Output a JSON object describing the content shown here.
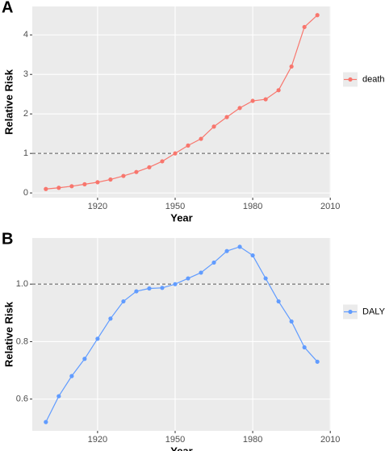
{
  "chart_data": [
    {
      "type": "line",
      "label": "A",
      "xlabel": "Year",
      "ylabel": "Relative Risk",
      "x": [
        1900,
        1905,
        1910,
        1915,
        1920,
        1925,
        1930,
        1935,
        1940,
        1945,
        1950,
        1955,
        1960,
        1965,
        1970,
        1975,
        1980,
        1985,
        1990,
        1995,
        2000,
        2005
      ],
      "series": [
        {
          "name": "death",
          "color": "#F8766D",
          "values": [
            0.1,
            0.13,
            0.17,
            0.22,
            0.27,
            0.34,
            0.43,
            0.53,
            0.65,
            0.8,
            1.0,
            1.2,
            1.37,
            1.68,
            1.92,
            2.15,
            2.33,
            2.37,
            2.6,
            3.2,
            4.2,
            4.5
          ]
        }
      ],
      "xlim": [
        1894.75,
        2010.25
      ],
      "xticks": [
        1920,
        1950,
        1980,
        2010
      ],
      "ylim": [
        -0.12,
        4.72
      ],
      "yticks": [
        0,
        1,
        2,
        3,
        4
      ],
      "hline": 1,
      "grid": true,
      "legend": "right"
    },
    {
      "type": "line",
      "label": "B",
      "xlabel": "Year",
      "ylabel": "Relative Risk",
      "x": [
        1900,
        1905,
        1910,
        1915,
        1920,
        1925,
        1930,
        1935,
        1940,
        1945,
        1950,
        1955,
        1960,
        1965,
        1970,
        1975,
        1980,
        1985,
        1990,
        1995,
        2000,
        2005
      ],
      "series": [
        {
          "name": "DALY",
          "color": "#619CFF",
          "values": [
            0.52,
            0.61,
            0.68,
            0.74,
            0.81,
            0.88,
            0.94,
            0.975,
            0.985,
            0.987,
            1.0,
            1.02,
            1.04,
            1.075,
            1.115,
            1.13,
            1.1,
            1.02,
            0.94,
            0.87,
            0.78,
            0.73
          ]
        }
      ],
      "xlim": [
        1894.75,
        2010.25
      ],
      "xticks": [
        1920,
        1950,
        1980,
        2010
      ],
      "ylim": [
        0.4895,
        1.1605
      ],
      "yticks": [
        0.6,
        0.8,
        {
          "value": 1,
          "label": "1.0"
        }
      ],
      "hline": 1,
      "grid": true,
      "legend": "right"
    }
  ]
}
